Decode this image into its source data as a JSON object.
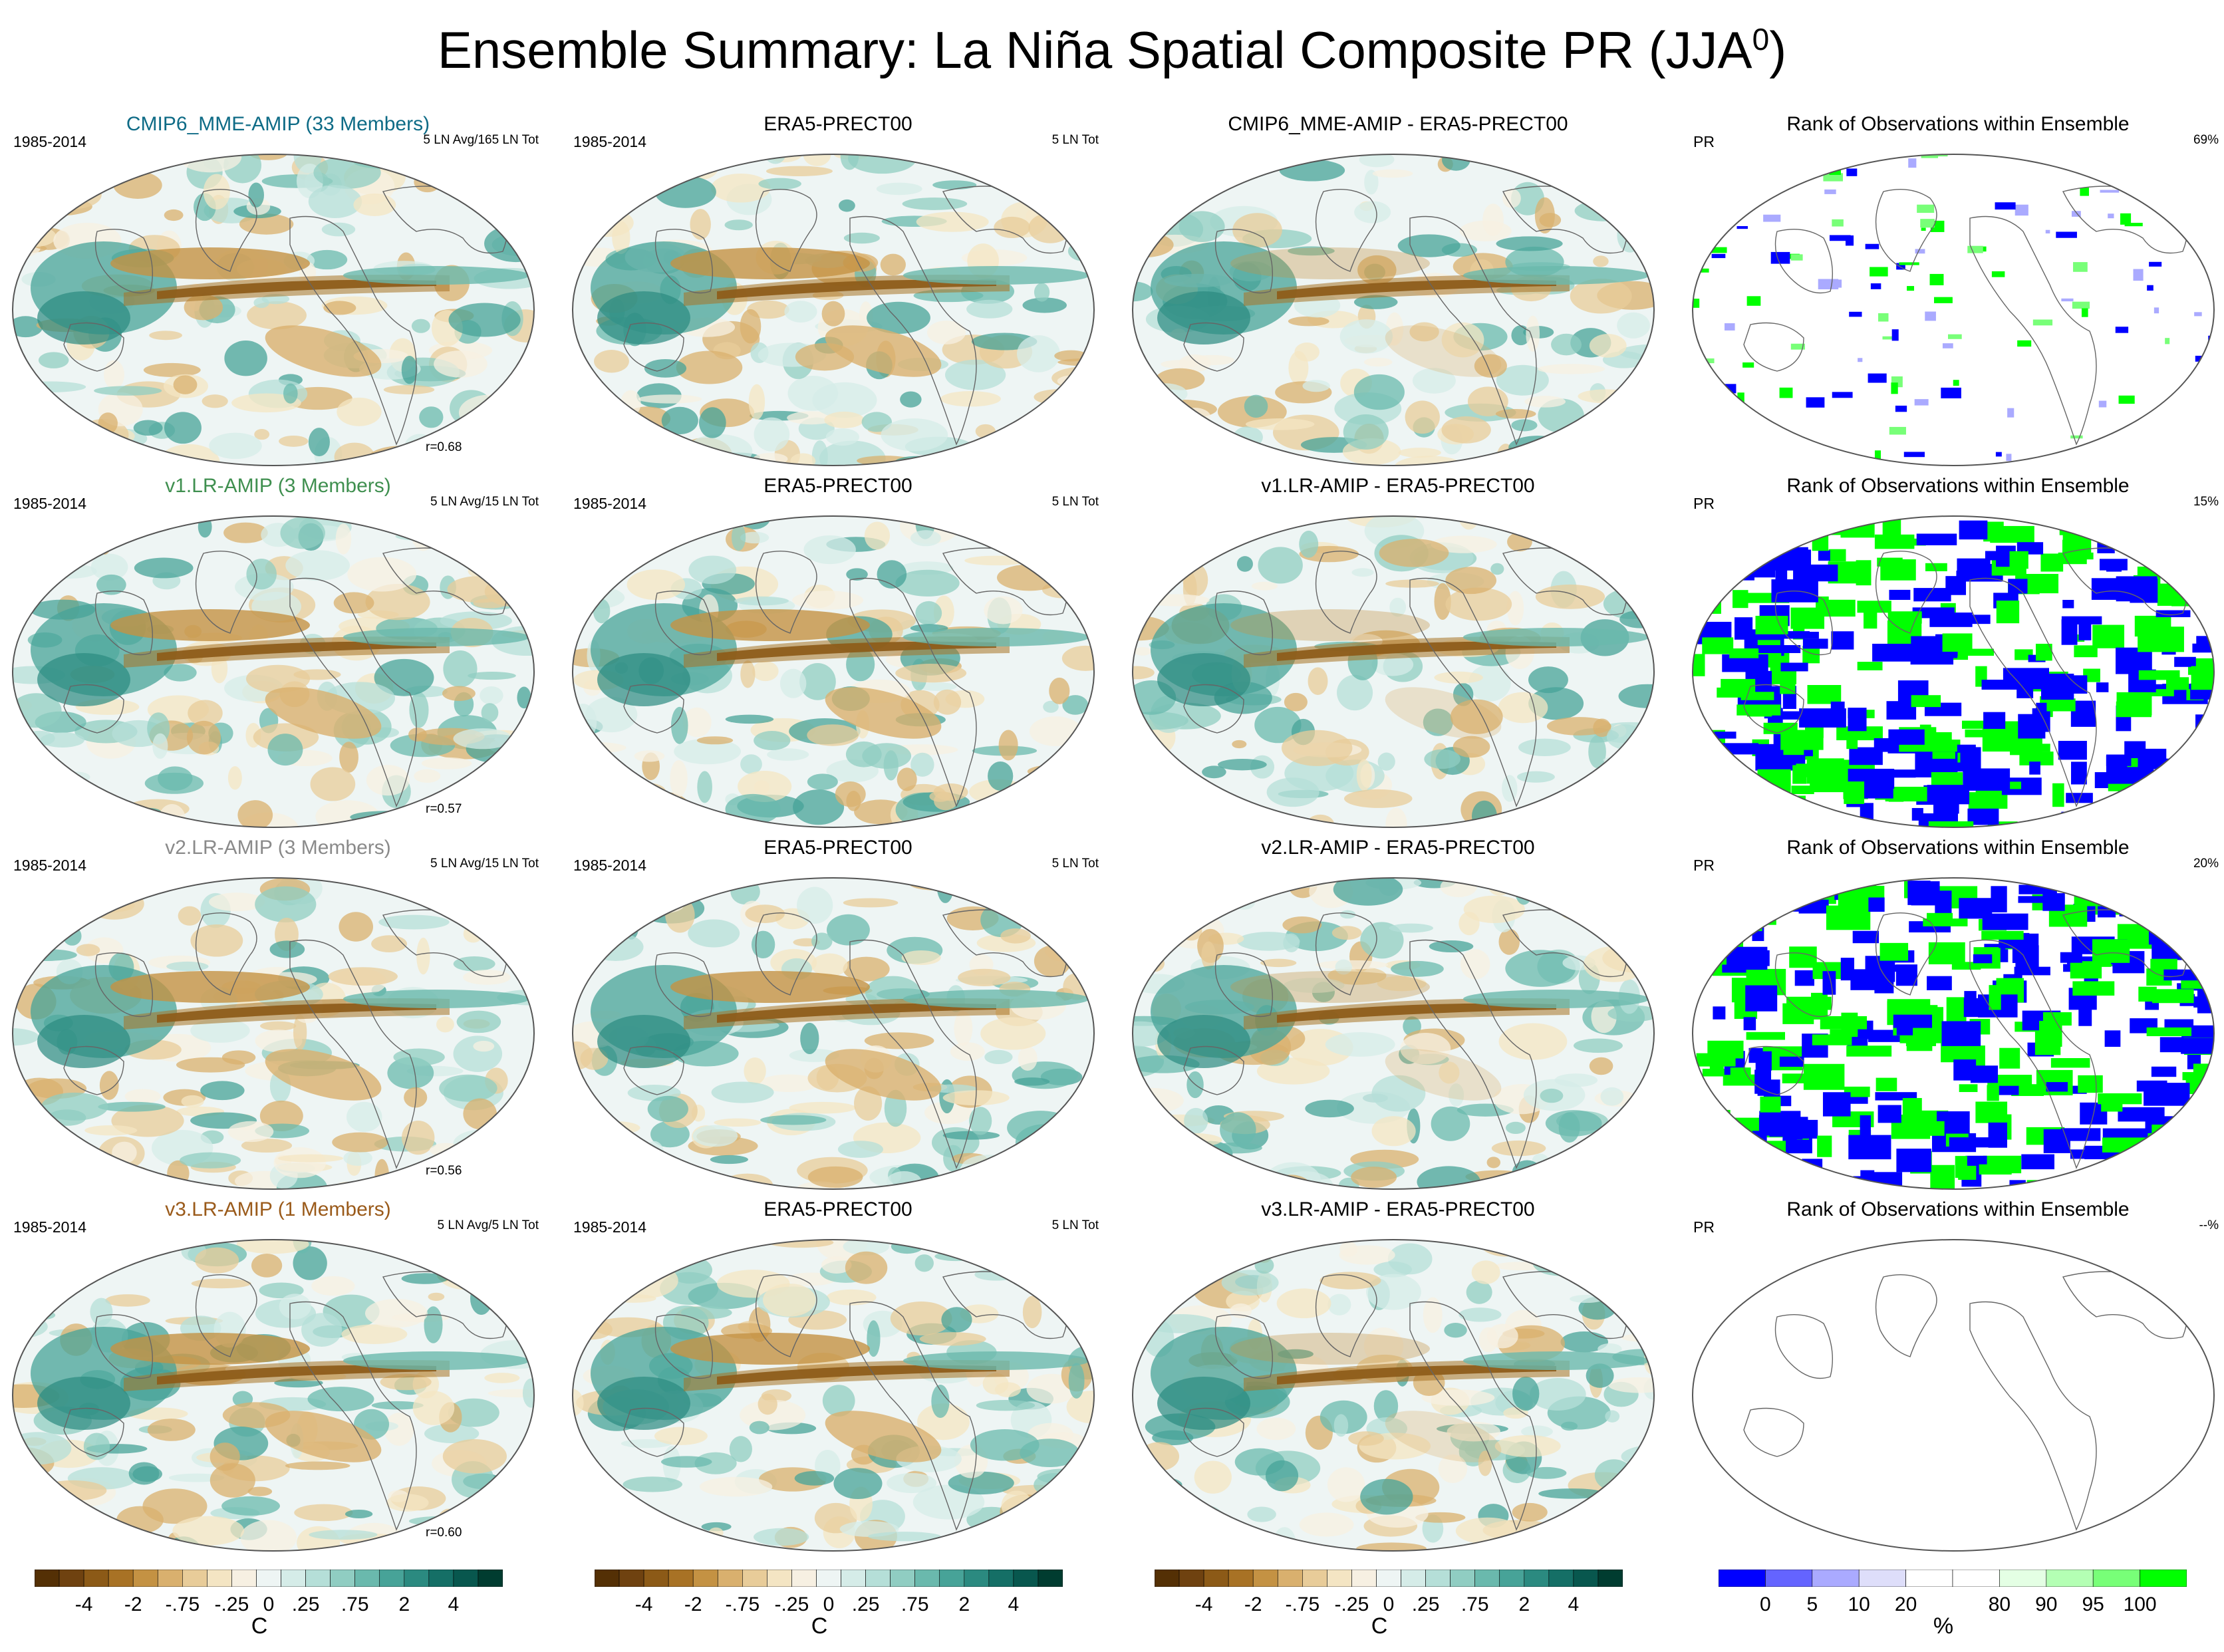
{
  "title": "Ensemble Summary: La Niña Spatial Composite PR (JJA",
  "title_sup": "0",
  "title_close": ")",
  "rows": [
    {
      "model_title": "CMIP6_MME-AMIP (33 Members)",
      "model_color": "#0e6b86",
      "period": "1985-2014",
      "model_count": "5 LN Avg/165 LN Tot",
      "corr": "r=0.68",
      "obs_title": "ERA5-PRECT00",
      "obs_period": "1985-2014",
      "obs_count": "5 LN Tot",
      "diff_title": "CMIP6_MME-AMIP - ERA5-PRECT00",
      "rank_title": "Rank of Observations within Ensemble",
      "rank_var": "PR",
      "rank_pct": "69%"
    },
    {
      "model_title": "v1.LR-AMIP (3 Members)",
      "model_color": "#3f8f4f",
      "period": "1985-2014",
      "model_count": "5 LN Avg/15 LN Tot",
      "corr": "r=0.57",
      "obs_title": "ERA5-PRECT00",
      "obs_period": "1985-2014",
      "obs_count": "5 LN Tot",
      "diff_title": "v1.LR-AMIP - ERA5-PRECT00",
      "rank_title": "Rank of Observations within Ensemble",
      "rank_var": "PR",
      "rank_pct": "15%"
    },
    {
      "model_title": "v2.LR-AMIP (3 Members)",
      "model_color": "#8a8a8a",
      "period": "1985-2014",
      "model_count": "5 LN Avg/15 LN Tot",
      "corr": "r=0.56",
      "obs_title": "ERA5-PRECT00",
      "obs_period": "1985-2014",
      "obs_count": "5 LN Tot",
      "diff_title": "v2.LR-AMIP - ERA5-PRECT00",
      "rank_title": "Rank of Observations within Ensemble",
      "rank_var": "PR",
      "rank_pct": "20%"
    },
    {
      "model_title": "v3.LR-AMIP (1 Members)",
      "model_color": "#9a5a1a",
      "period": "1985-2014",
      "model_count": "5 LN Avg/5 LN Tot",
      "corr": "r=0.60",
      "obs_title": "ERA5-PRECT00",
      "obs_period": "1985-2014",
      "obs_count": "5 LN Tot",
      "diff_title": "v3.LR-AMIP - ERA5-PRECT00",
      "rank_title": "Rank of Observations within Ensemble",
      "rank_var": "PR",
      "rank_pct": "--%"
    }
  ],
  "colorbar_brbg": {
    "unit": "C",
    "ticks": [
      "-4",
      "-2",
      "-.75",
      "-.25",
      "0",
      ".25",
      ".75",
      "2",
      "4"
    ],
    "colors": [
      "#543005",
      "#6f4210",
      "#8c5a17",
      "#a87225",
      "#c49243",
      "#d9b06e",
      "#e8cc99",
      "#f4e5c3",
      "#f7f0e2",
      "#eef5f4",
      "#d5ece8",
      "#b5dfd8",
      "#90cdc2",
      "#6ab9ad",
      "#47a398",
      "#2b8a80",
      "#156f66",
      "#08574e",
      "#003c30"
    ]
  },
  "colorbar_rank": {
    "unit": "%",
    "ticks": [
      "0",
      "5",
      "10",
      "20",
      "80",
      "90",
      "95",
      "100"
    ],
    "colors": [
      "#0000ff",
      "#6464ff",
      "#aaaaff",
      "#dedefa",
      "#ffffff",
      "#ffffff",
      "#e4ffe4",
      "#b4ffb4",
      "#78ff78",
      "#00ff00"
    ]
  },
  "chart_data": [
    {
      "type": "heatmap",
      "title": "CMIP6_MME-AMIP (33 Members)",
      "subtitle": "1985-2014, 5 LN Avg/165 LN Tot",
      "annotation": "r=0.68",
      "unit": "C",
      "ticks": [
        "-4",
        "-2",
        "-.75",
        "-.25",
        "0",
        ".25",
        ".75",
        "2",
        "4"
      ]
    },
    {
      "type": "heatmap",
      "title": "ERA5-PRECT00",
      "subtitle": "1985-2014, 5 LN Tot",
      "unit": "C"
    },
    {
      "type": "heatmap",
      "title": "CMIP6_MME-AMIP - ERA5-PRECT00",
      "unit": "C"
    },
    {
      "type": "heatmap",
      "title": "Rank of Observations within Ensemble",
      "subtitle": "PR",
      "annotation": "69%",
      "unit": "%",
      "ticks": [
        "0",
        "5",
        "10",
        "20",
        "80",
        "90",
        "95",
        "100"
      ]
    },
    {
      "type": "heatmap",
      "title": "v1.LR-AMIP (3 Members)",
      "annotation": "r=0.57"
    },
    {
      "type": "heatmap",
      "title": "v1.LR-AMIP - ERA5-PRECT00"
    },
    {
      "type": "heatmap",
      "title": "Rank of Observations within Ensemble",
      "annotation": "15%"
    },
    {
      "type": "heatmap",
      "title": "v2.LR-AMIP (3 Members)",
      "annotation": "r=0.56"
    },
    {
      "type": "heatmap",
      "title": "v2.LR-AMIP - ERA5-PRECT00"
    },
    {
      "type": "heatmap",
      "title": "Rank of Observations within Ensemble",
      "annotation": "20%"
    },
    {
      "type": "heatmap",
      "title": "v3.LR-AMIP (1 Members)",
      "annotation": "r=0.60"
    },
    {
      "type": "heatmap",
      "title": "v3.LR-AMIP - ERA5-PRECT00"
    },
    {
      "type": "heatmap",
      "title": "Rank of Observations within Ensemble",
      "annotation": "--%"
    }
  ]
}
